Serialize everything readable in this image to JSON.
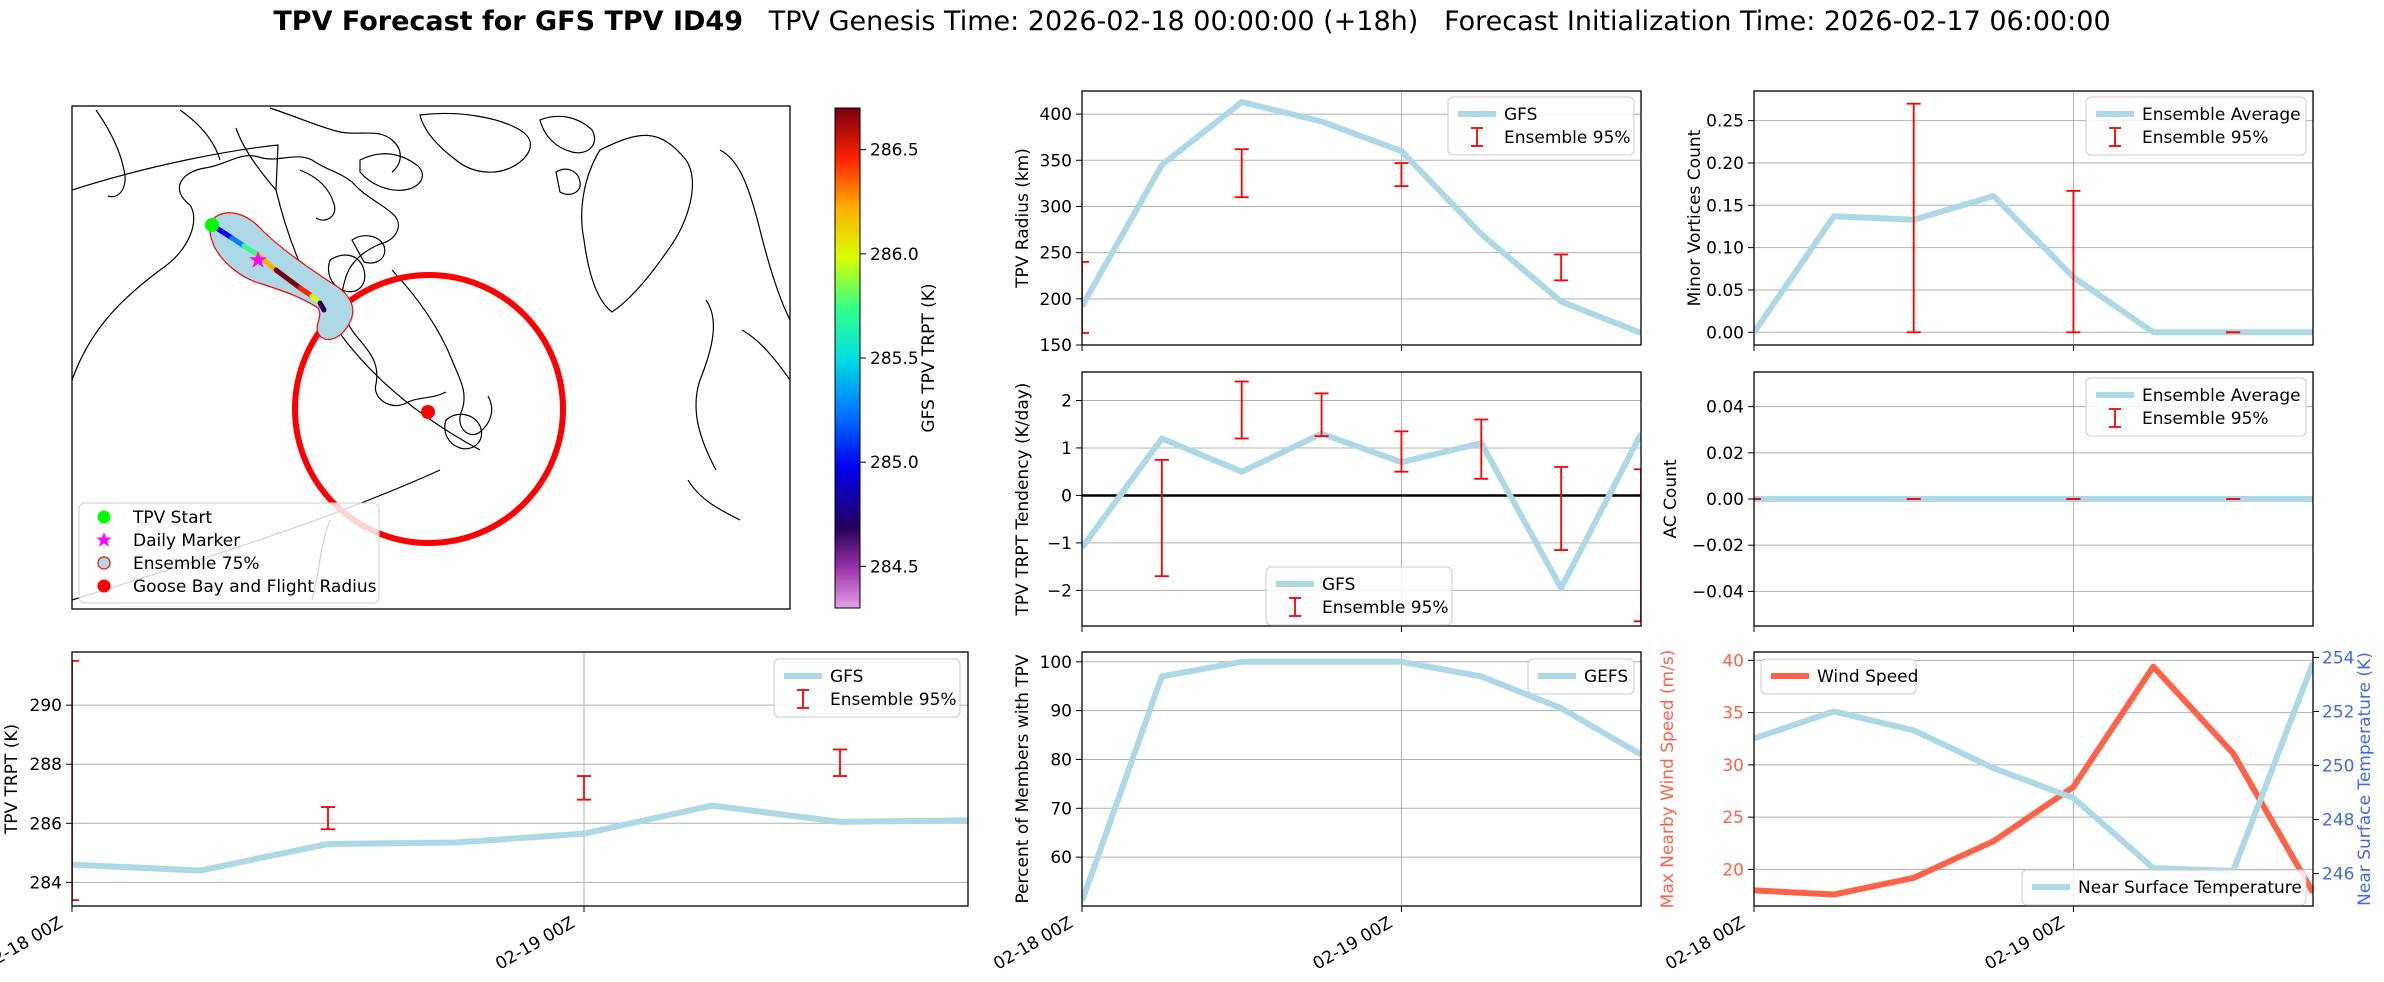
{
  "figure": {
    "title_bold": "TPV Forecast for GFS TPV ID49",
    "title_genesis": "TPV Genesis Time: 2026-02-18 00:00:00 (+18h)",
    "title_init": "Forecast Initialization Time: 2026-02-17 06:00:00"
  },
  "colors": {
    "gfs_line": "#add8e6",
    "ensemble_bar": "#ff0000",
    "wind": "#ff6347",
    "temp_axis": "#4169e1",
    "zero_line": "#000000"
  },
  "chart_data": [
    {
      "id": "map",
      "type": "map",
      "colorbar": {
        "label": "GFS TPV TRPT (K)",
        "ticks": [
          "284.5",
          "285.0",
          "285.5",
          "286.0",
          "286.5"
        ],
        "range": [
          284.3,
          286.7
        ]
      },
      "legend": [
        {
          "label": "TPV Start",
          "marker": "circle",
          "color": "#00ff00"
        },
        {
          "label": "Daily Marker",
          "marker": "star",
          "color": "#ff00ff"
        },
        {
          "label": "Ensemble 75%",
          "marker": "circle-outline",
          "color": "#add8e6"
        },
        {
          "label": "Goose Bay and Flight Radius",
          "marker": "circle",
          "color": "#ff0000"
        }
      ]
    },
    {
      "id": "radius",
      "type": "line",
      "ylabel": "TPV Radius (km)",
      "ylim": [
        150,
        425
      ],
      "yticks": [
        "150",
        "200",
        "250",
        "300",
        "350",
        "400"
      ],
      "xlim": [
        0,
        7
      ],
      "xticks": [
        0,
        4
      ],
      "xtick_labels": [
        "",
        ""
      ],
      "series": [
        {
          "name": "GFS",
          "x": [
            0,
            1,
            2,
            3,
            4,
            5,
            6,
            7
          ],
          "y": [
            192,
            345,
            413,
            392,
            360,
            270,
            197,
            163
          ]
        }
      ],
      "errorbars": [
        {
          "x": 0,
          "lo": 163,
          "hi": 240
        },
        {
          "x": 2,
          "lo": 310,
          "hi": 362
        },
        {
          "x": 4,
          "lo": 322,
          "hi": 347
        },
        {
          "x": 6,
          "lo": 220,
          "hi": 248
        }
      ],
      "legend": [
        "GFS",
        "Ensemble 95%"
      ],
      "legend_loc": "upper-right"
    },
    {
      "id": "minor",
      "type": "line",
      "ylabel": "Minor Vortices Count",
      "ylim": [
        -0.015,
        0.285
      ],
      "yticks": [
        "0.00",
        "0.05",
        "0.10",
        "0.15",
        "0.20",
        "0.25"
      ],
      "xlim": [
        0,
        7
      ],
      "xticks": [
        0,
        4
      ],
      "xtick_labels": [
        "",
        ""
      ],
      "series": [
        {
          "name": "Ensemble Average",
          "x": [
            0,
            1,
            2,
            3,
            4,
            5,
            6,
            7
          ],
          "y": [
            0.0,
            0.137,
            0.133,
            0.161,
            0.065,
            0.0,
            0.0,
            0.0
          ]
        }
      ],
      "errorbars": [
        {
          "x": 2,
          "lo": 0.0,
          "hi": 0.27
        },
        {
          "x": 4,
          "lo": 0.0,
          "hi": 0.167
        },
        {
          "x": 6,
          "lo": 0.0,
          "hi": 0.0
        }
      ],
      "legend": [
        "Ensemble Average",
        "Ensemble 95%"
      ],
      "legend_loc": "upper-right"
    },
    {
      "id": "tendency",
      "type": "line",
      "ylabel": "TPV TRPT Tendency (K/day)",
      "ylim": [
        -2.75,
        2.6
      ],
      "yticks": [
        "−2",
        "−1",
        "0",
        "1",
        "2"
      ],
      "xlim": [
        0,
        7
      ],
      "xticks": [
        0,
        4
      ],
      "xtick_labels": [
        "",
        ""
      ],
      "zero_line": true,
      "series": [
        {
          "name": "GFS",
          "x": [
            0,
            1,
            2,
            3,
            4,
            5,
            6,
            7
          ],
          "y": [
            -1.1,
            1.2,
            0.5,
            1.3,
            0.7,
            1.1,
            -1.95,
            1.3
          ]
        }
      ],
      "errorbars": [
        {
          "x": 1,
          "lo": -1.7,
          "hi": 0.75
        },
        {
          "x": 2,
          "lo": 1.2,
          "hi": 2.4
        },
        {
          "x": 3,
          "lo": 1.25,
          "hi": 2.15
        },
        {
          "x": 4,
          "lo": 0.5,
          "hi": 1.35
        },
        {
          "x": 5,
          "lo": 0.35,
          "hi": 1.6
        },
        {
          "x": 6,
          "lo": -1.15,
          "hi": 0.6
        },
        {
          "x": 7,
          "lo": -2.65,
          "hi": 0.55
        }
      ],
      "legend": [
        "GFS",
        "Ensemble 95%"
      ],
      "legend_loc": "lower-center"
    },
    {
      "id": "ac",
      "type": "line",
      "ylabel": "AC Count",
      "ylim": [
        -0.055,
        0.055
      ],
      "yticks": [
        "−0.04",
        "−0.02",
        "0.00",
        "0.02",
        "0.04"
      ],
      "xlim": [
        0,
        7
      ],
      "xticks": [
        0,
        4
      ],
      "xtick_labels": [
        "",
        ""
      ],
      "series": [
        {
          "name": "Ensemble Average",
          "x": [
            0,
            1,
            2,
            3,
            4,
            5,
            6,
            7
          ],
          "y": [
            0,
            0,
            0,
            0,
            0,
            0,
            0,
            0
          ]
        }
      ],
      "errorbars": [
        {
          "x": 0,
          "lo": 0,
          "hi": 0
        },
        {
          "x": 2,
          "lo": 0,
          "hi": 0
        },
        {
          "x": 4,
          "lo": 0,
          "hi": 0
        },
        {
          "x": 6,
          "lo": 0,
          "hi": 0
        }
      ],
      "legend": [
        "Ensemble Average",
        "Ensemble 95%"
      ],
      "legend_loc": "upper-right"
    },
    {
      "id": "trpt",
      "type": "line",
      "ylabel": "TPV TRPT (K)",
      "ylim": [
        283.2,
        291.8
      ],
      "yticks": [
        "284",
        "286",
        "288",
        "290"
      ],
      "xlim": [
        0,
        7
      ],
      "xticks": [
        0,
        4
      ],
      "xtick_labels": [
        "02-18 00Z",
        "02-19 00Z"
      ],
      "series": [
        {
          "name": "GFS",
          "x": [
            0,
            1,
            2,
            3,
            4,
            5,
            6,
            7
          ],
          "y": [
            284.6,
            284.4,
            285.3,
            285.35,
            285.65,
            286.6,
            286.05,
            286.1
          ]
        }
      ],
      "errorbars": [
        {
          "x": 0,
          "lo": 283.4,
          "hi": 291.5
        },
        {
          "x": 2,
          "lo": 285.8,
          "hi": 286.55
        },
        {
          "x": 4,
          "lo": 286.8,
          "hi": 287.6
        },
        {
          "x": 6,
          "lo": 287.6,
          "hi": 288.5
        }
      ],
      "legend": [
        "GFS",
        "Ensemble 95%"
      ],
      "legend_loc": "upper-right"
    },
    {
      "id": "percent",
      "type": "line",
      "ylabel": "Percent of Members with TPV",
      "ylim": [
        50,
        102
      ],
      "yticks": [
        "60",
        "70",
        "80",
        "90",
        "100"
      ],
      "xlim": [
        0,
        7
      ],
      "xticks": [
        0,
        4
      ],
      "xtick_labels": [
        "02-18 00Z",
        "02-19 00Z"
      ],
      "series": [
        {
          "name": "GEFS",
          "x": [
            0,
            1,
            2,
            3,
            4,
            5,
            6,
            7
          ],
          "y": [
            51,
            97,
            100,
            100,
            100,
            97,
            90.5,
            81
          ]
        }
      ],
      "errorbars": [],
      "legend": [
        "GEFS"
      ],
      "legend_loc": "upper-right"
    },
    {
      "id": "wind",
      "type": "line",
      "ylabel": "Max Nearby Wind Speed (m/s)",
      "ylabel_right": "Near Surface Temperature (K)",
      "ylim": [
        16.5,
        40.8
      ],
      "ylim_right": [
        244.8,
        254.2
      ],
      "yticks": [
        "20",
        "25",
        "30",
        "35",
        "40"
      ],
      "yticks_right": [
        "246",
        "248",
        "250",
        "252",
        "254"
      ],
      "xlim": [
        0,
        7
      ],
      "xticks": [
        0,
        4
      ],
      "xtick_labels": [
        "02-18 00Z",
        "02-19 00Z"
      ],
      "series": [
        {
          "name": "Wind Speed",
          "axis": "left",
          "x": [
            0,
            1,
            2,
            3,
            4,
            5,
            6,
            7
          ],
          "y": [
            18,
            17.6,
            19.2,
            22.7,
            27.9,
            39.4,
            31.1,
            17.8
          ]
        },
        {
          "name": "Near Surface Temperature",
          "axis": "right",
          "x": [
            0,
            1,
            2,
            3,
            4,
            5,
            6,
            7
          ],
          "y": [
            251.0,
            252.0,
            251.3,
            249.9,
            248.8,
            246.2,
            246.1,
            253.8
          ]
        }
      ],
      "legend": [
        "Wind Speed",
        "Near Surface Temperature"
      ]
    }
  ]
}
